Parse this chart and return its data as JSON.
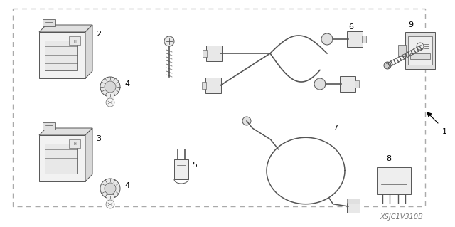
{
  "diagram_code": "XSJC1V310B",
  "background_color": "#ffffff",
  "line_color": "#555555",
  "text_color": "#000000",
  "figsize": [
    6.4,
    3.19
  ],
  "dpi": 100
}
